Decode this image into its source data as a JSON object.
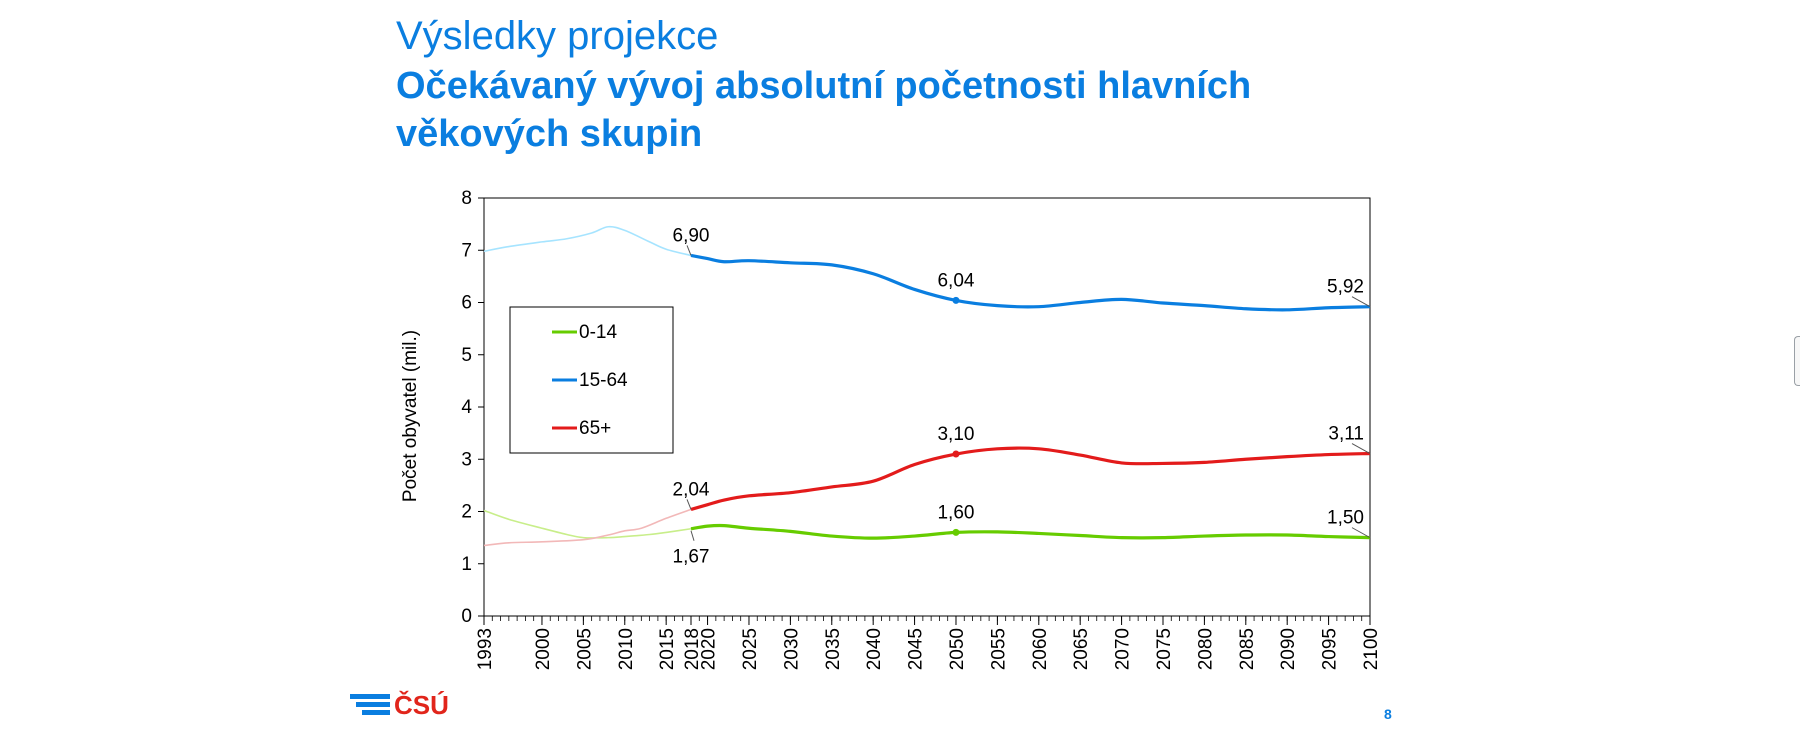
{
  "slide": {
    "title_line1": "Výsledky projekce",
    "title_line2": "Očekávaný vývoj absolutní početnosti hlavních věkových skupin",
    "logo_text": "ČSÚ",
    "page_number": "8"
  },
  "chart_data": {
    "type": "line",
    "title": "",
    "xlabel": "",
    "ylabel": "Počet obyvatel (mil.)",
    "ylim": [
      0,
      8
    ],
    "xlim": [
      1993,
      2100
    ],
    "y_ticks": [
      "0",
      "1",
      "2",
      "3",
      "4",
      "5",
      "6",
      "7",
      "8"
    ],
    "x_ticks": [
      "1993",
      "2000",
      "2005",
      "2010",
      "2015",
      "2018",
      "2020",
      "2025",
      "2030",
      "2035",
      "2040",
      "2045",
      "2050",
      "2055",
      "2060",
      "2065",
      "2070",
      "2075",
      "2080",
      "2085",
      "2090",
      "2095",
      "2100"
    ],
    "grid": false,
    "legend_position": "left",
    "projection_start": 2018,
    "series": [
      {
        "name": "0-14",
        "color": "#66cc00",
        "historical_color": "#c8ee8a",
        "points": [
          [
            1993,
            2.02
          ],
          [
            1996,
            1.85
          ],
          [
            2000,
            1.68
          ],
          [
            2003,
            1.56
          ],
          [
            2005,
            1.5
          ],
          [
            2008,
            1.5
          ],
          [
            2010,
            1.52
          ],
          [
            2013,
            1.56
          ],
          [
            2015,
            1.6
          ],
          [
            2018,
            1.67
          ],
          [
            2020,
            1.72
          ],
          [
            2022,
            1.73
          ],
          [
            2025,
            1.68
          ],
          [
            2030,
            1.62
          ],
          [
            2035,
            1.53
          ],
          [
            2040,
            1.49
          ],
          [
            2045,
            1.53
          ],
          [
            2050,
            1.6
          ],
          [
            2055,
            1.61
          ],
          [
            2060,
            1.58
          ],
          [
            2065,
            1.54
          ],
          [
            2070,
            1.5
          ],
          [
            2075,
            1.5
          ],
          [
            2080,
            1.53
          ],
          [
            2085,
            1.55
          ],
          [
            2090,
            1.55
          ],
          [
            2095,
            1.52
          ],
          [
            2100,
            1.5
          ]
        ]
      },
      {
        "name": "15-64",
        "color": "#0a7ee0",
        "historical_color": "#a6e4ff",
        "points": [
          [
            1993,
            6.98
          ],
          [
            1996,
            7.07
          ],
          [
            2000,
            7.16
          ],
          [
            2003,
            7.22
          ],
          [
            2006,
            7.33
          ],
          [
            2008,
            7.45
          ],
          [
            2010,
            7.38
          ],
          [
            2013,
            7.16
          ],
          [
            2015,
            7.02
          ],
          [
            2018,
            6.9
          ],
          [
            2020,
            6.84
          ],
          [
            2022,
            6.78
          ],
          [
            2025,
            6.8
          ],
          [
            2030,
            6.76
          ],
          [
            2035,
            6.72
          ],
          [
            2040,
            6.55
          ],
          [
            2045,
            6.25
          ],
          [
            2050,
            6.04
          ],
          [
            2055,
            5.94
          ],
          [
            2060,
            5.92
          ],
          [
            2065,
            6.0
          ],
          [
            2070,
            6.06
          ],
          [
            2075,
            5.99
          ],
          [
            2080,
            5.94
          ],
          [
            2085,
            5.88
          ],
          [
            2090,
            5.86
          ],
          [
            2095,
            5.9
          ],
          [
            2100,
            5.92
          ]
        ]
      },
      {
        "name": "65+",
        "color": "#e31b1b",
        "historical_color": "#f2b8b8",
        "points": [
          [
            1993,
            1.35
          ],
          [
            1996,
            1.4
          ],
          [
            2000,
            1.42
          ],
          [
            2005,
            1.46
          ],
          [
            2008,
            1.55
          ],
          [
            2010,
            1.63
          ],
          [
            2012,
            1.68
          ],
          [
            2015,
            1.87
          ],
          [
            2018,
            2.04
          ],
          [
            2020,
            2.13
          ],
          [
            2022,
            2.22
          ],
          [
            2025,
            2.3
          ],
          [
            2030,
            2.36
          ],
          [
            2035,
            2.47
          ],
          [
            2040,
            2.58
          ],
          [
            2045,
            2.9
          ],
          [
            2050,
            3.1
          ],
          [
            2055,
            3.2
          ],
          [
            2060,
            3.2
          ],
          [
            2065,
            3.08
          ],
          [
            2070,
            2.93
          ],
          [
            2075,
            2.92
          ],
          [
            2080,
            2.94
          ],
          [
            2085,
            3.0
          ],
          [
            2090,
            3.05
          ],
          [
            2095,
            3.09
          ],
          [
            2100,
            3.11
          ]
        ]
      }
    ],
    "annotations": [
      {
        "series": "15-64",
        "x": 2018,
        "y": 6.9,
        "label": "6,90",
        "anchor": "above"
      },
      {
        "series": "15-64",
        "x": 2050,
        "y": 6.04,
        "label": "6,04",
        "anchor": "above",
        "marker": true
      },
      {
        "series": "15-64",
        "x": 2100,
        "y": 5.92,
        "label": "5,92",
        "anchor": "above-left"
      },
      {
        "series": "65+",
        "x": 2018,
        "y": 2.04,
        "label": "2,04",
        "anchor": "above"
      },
      {
        "series": "65+",
        "x": 2050,
        "y": 3.1,
        "label": "3,10",
        "anchor": "above",
        "marker": true
      },
      {
        "series": "65+",
        "x": 2100,
        "y": 3.11,
        "label": "3,11",
        "anchor": "above-left"
      },
      {
        "series": "0-14",
        "x": 2018,
        "y": 1.67,
        "label": "1,67",
        "anchor": "below"
      },
      {
        "series": "0-14",
        "x": 2050,
        "y": 1.6,
        "label": "1,60",
        "anchor": "above",
        "marker": true
      },
      {
        "series": "0-14",
        "x": 2100,
        "y": 1.5,
        "label": "1,50",
        "anchor": "above-left"
      }
    ]
  }
}
